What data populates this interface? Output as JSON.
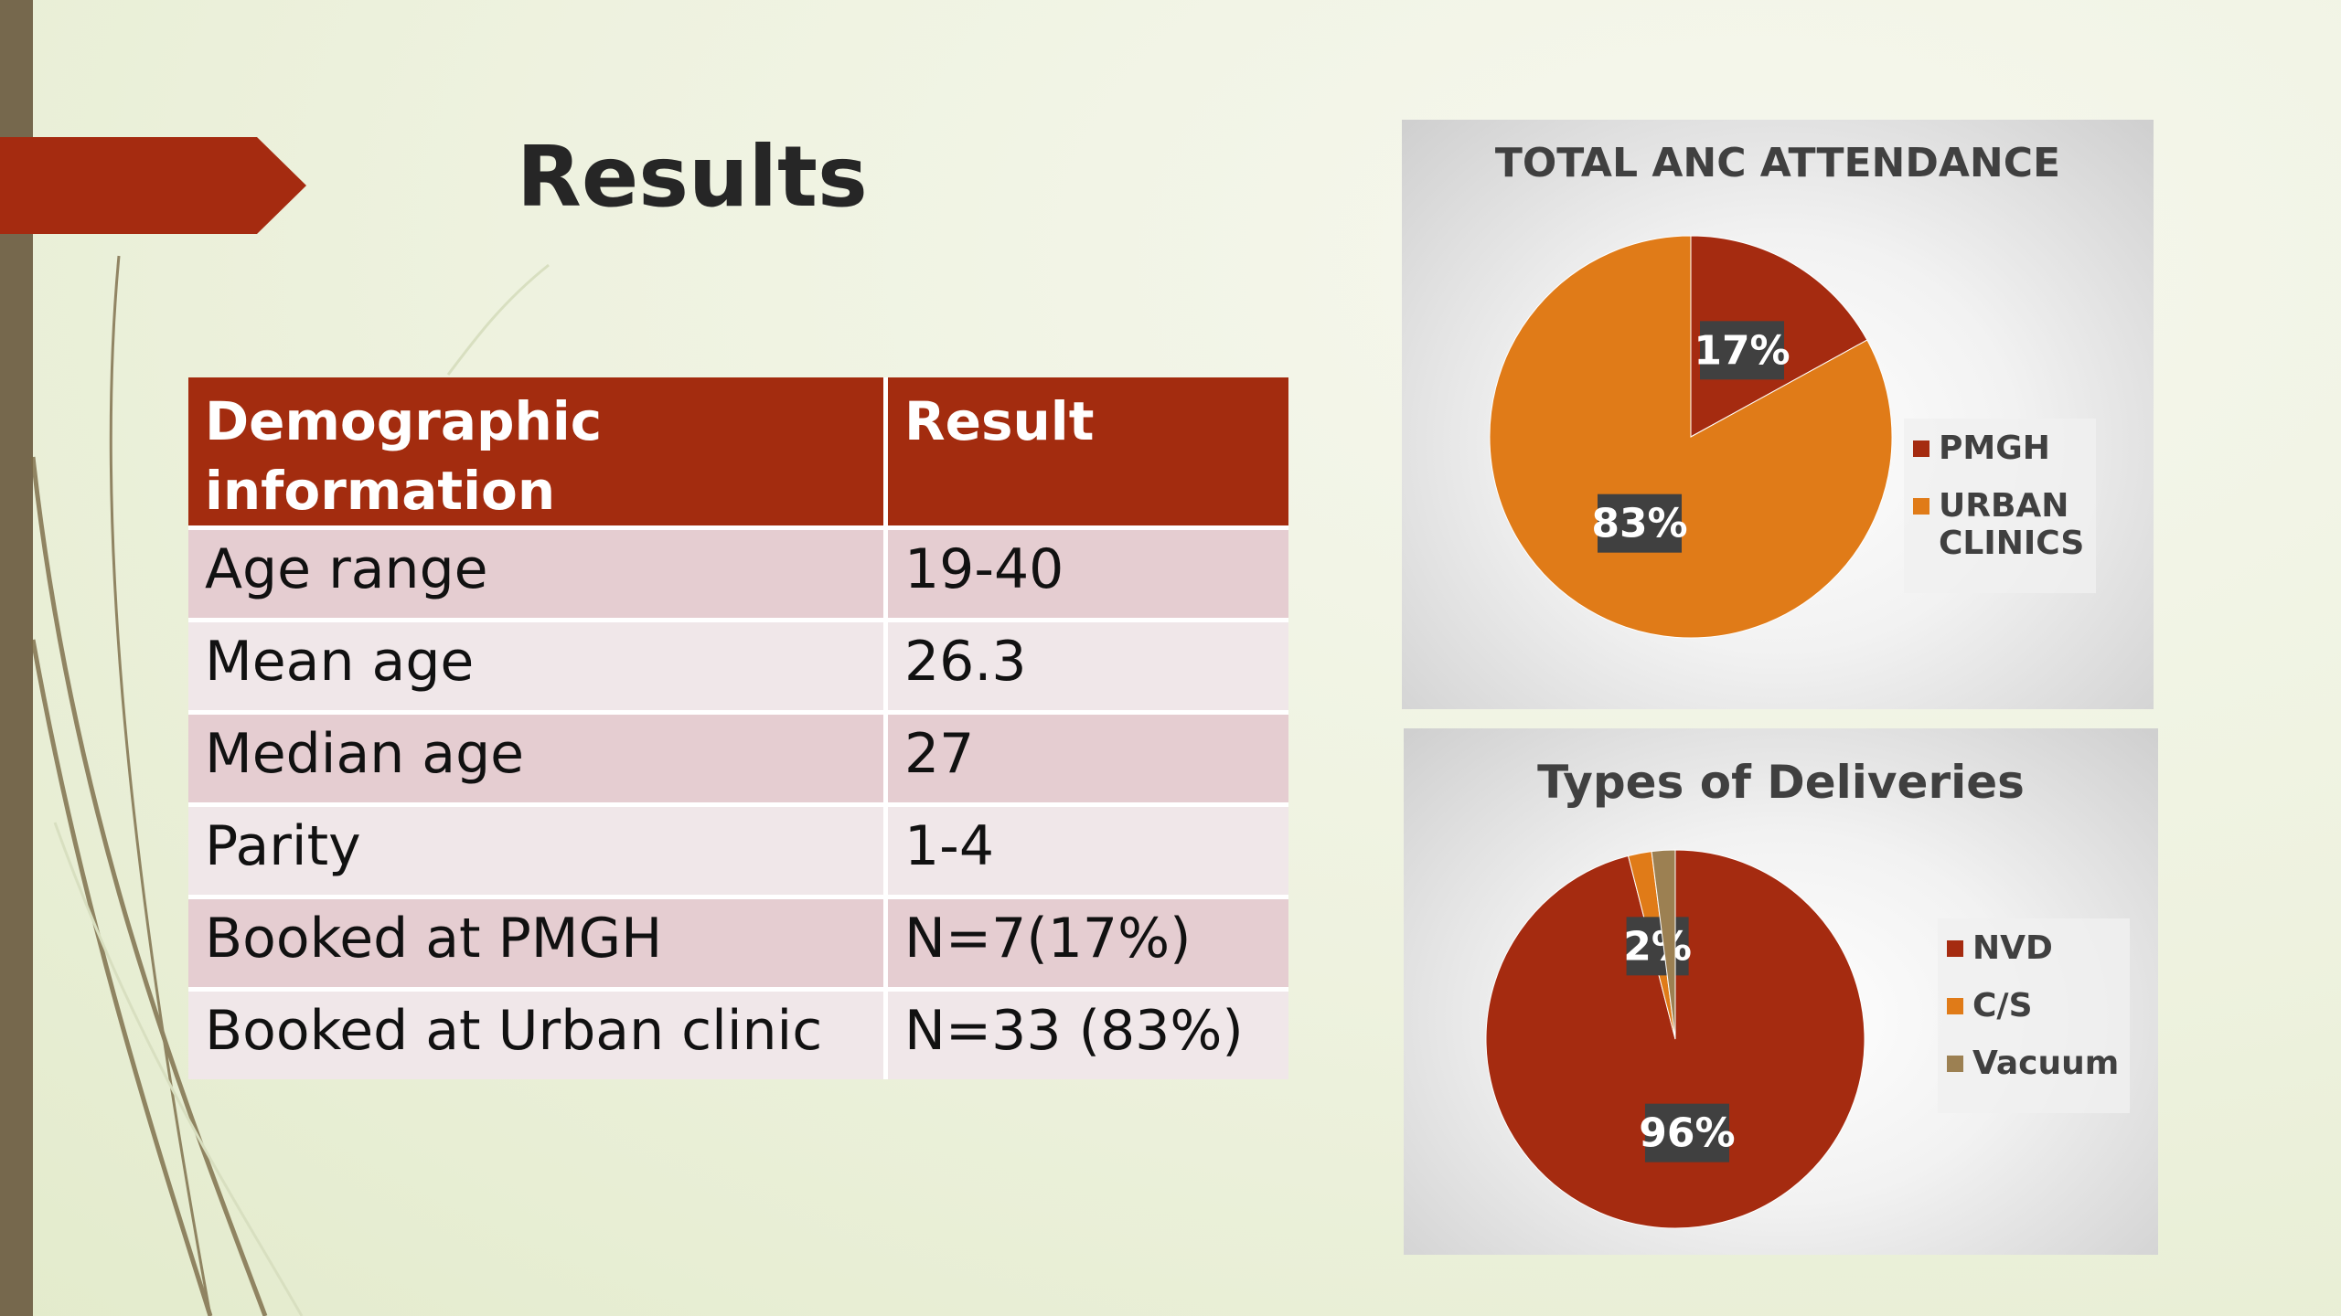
{
  "title": "Results",
  "table": {
    "header": [
      "Demographic information",
      "Result"
    ],
    "rows": [
      [
        "Age range",
        "19-40"
      ],
      [
        "Mean age",
        "26.3"
      ],
      [
        "Median age",
        "27"
      ],
      [
        "Parity",
        "1-4"
      ],
      [
        "Booked at PMGH",
        "N=7(17%)"
      ],
      [
        "Booked at Urban clinic",
        "N=33 (83%)"
      ]
    ]
  },
  "chart_data": [
    {
      "type": "pie",
      "title": "TOTAL ANC ATTENDANCE",
      "categories": [
        "PMGH",
        "URBAN CLINICS"
      ],
      "values": [
        17,
        83
      ],
      "value_labels": [
        "17%",
        "83%"
      ],
      "colors": [
        "#a52b10",
        "#e07b18"
      ],
      "legend": "right"
    },
    {
      "type": "pie",
      "title": "Types of Deliveries",
      "categories": [
        "NVD",
        "C/S",
        "Vacuum"
      ],
      "values": [
        96,
        2,
        2
      ],
      "value_labels": [
        "96%",
        "2%",
        null
      ],
      "colors": [
        "#a52b10",
        "#e07b18",
        "#9c8052"
      ],
      "legend": "right"
    }
  ]
}
